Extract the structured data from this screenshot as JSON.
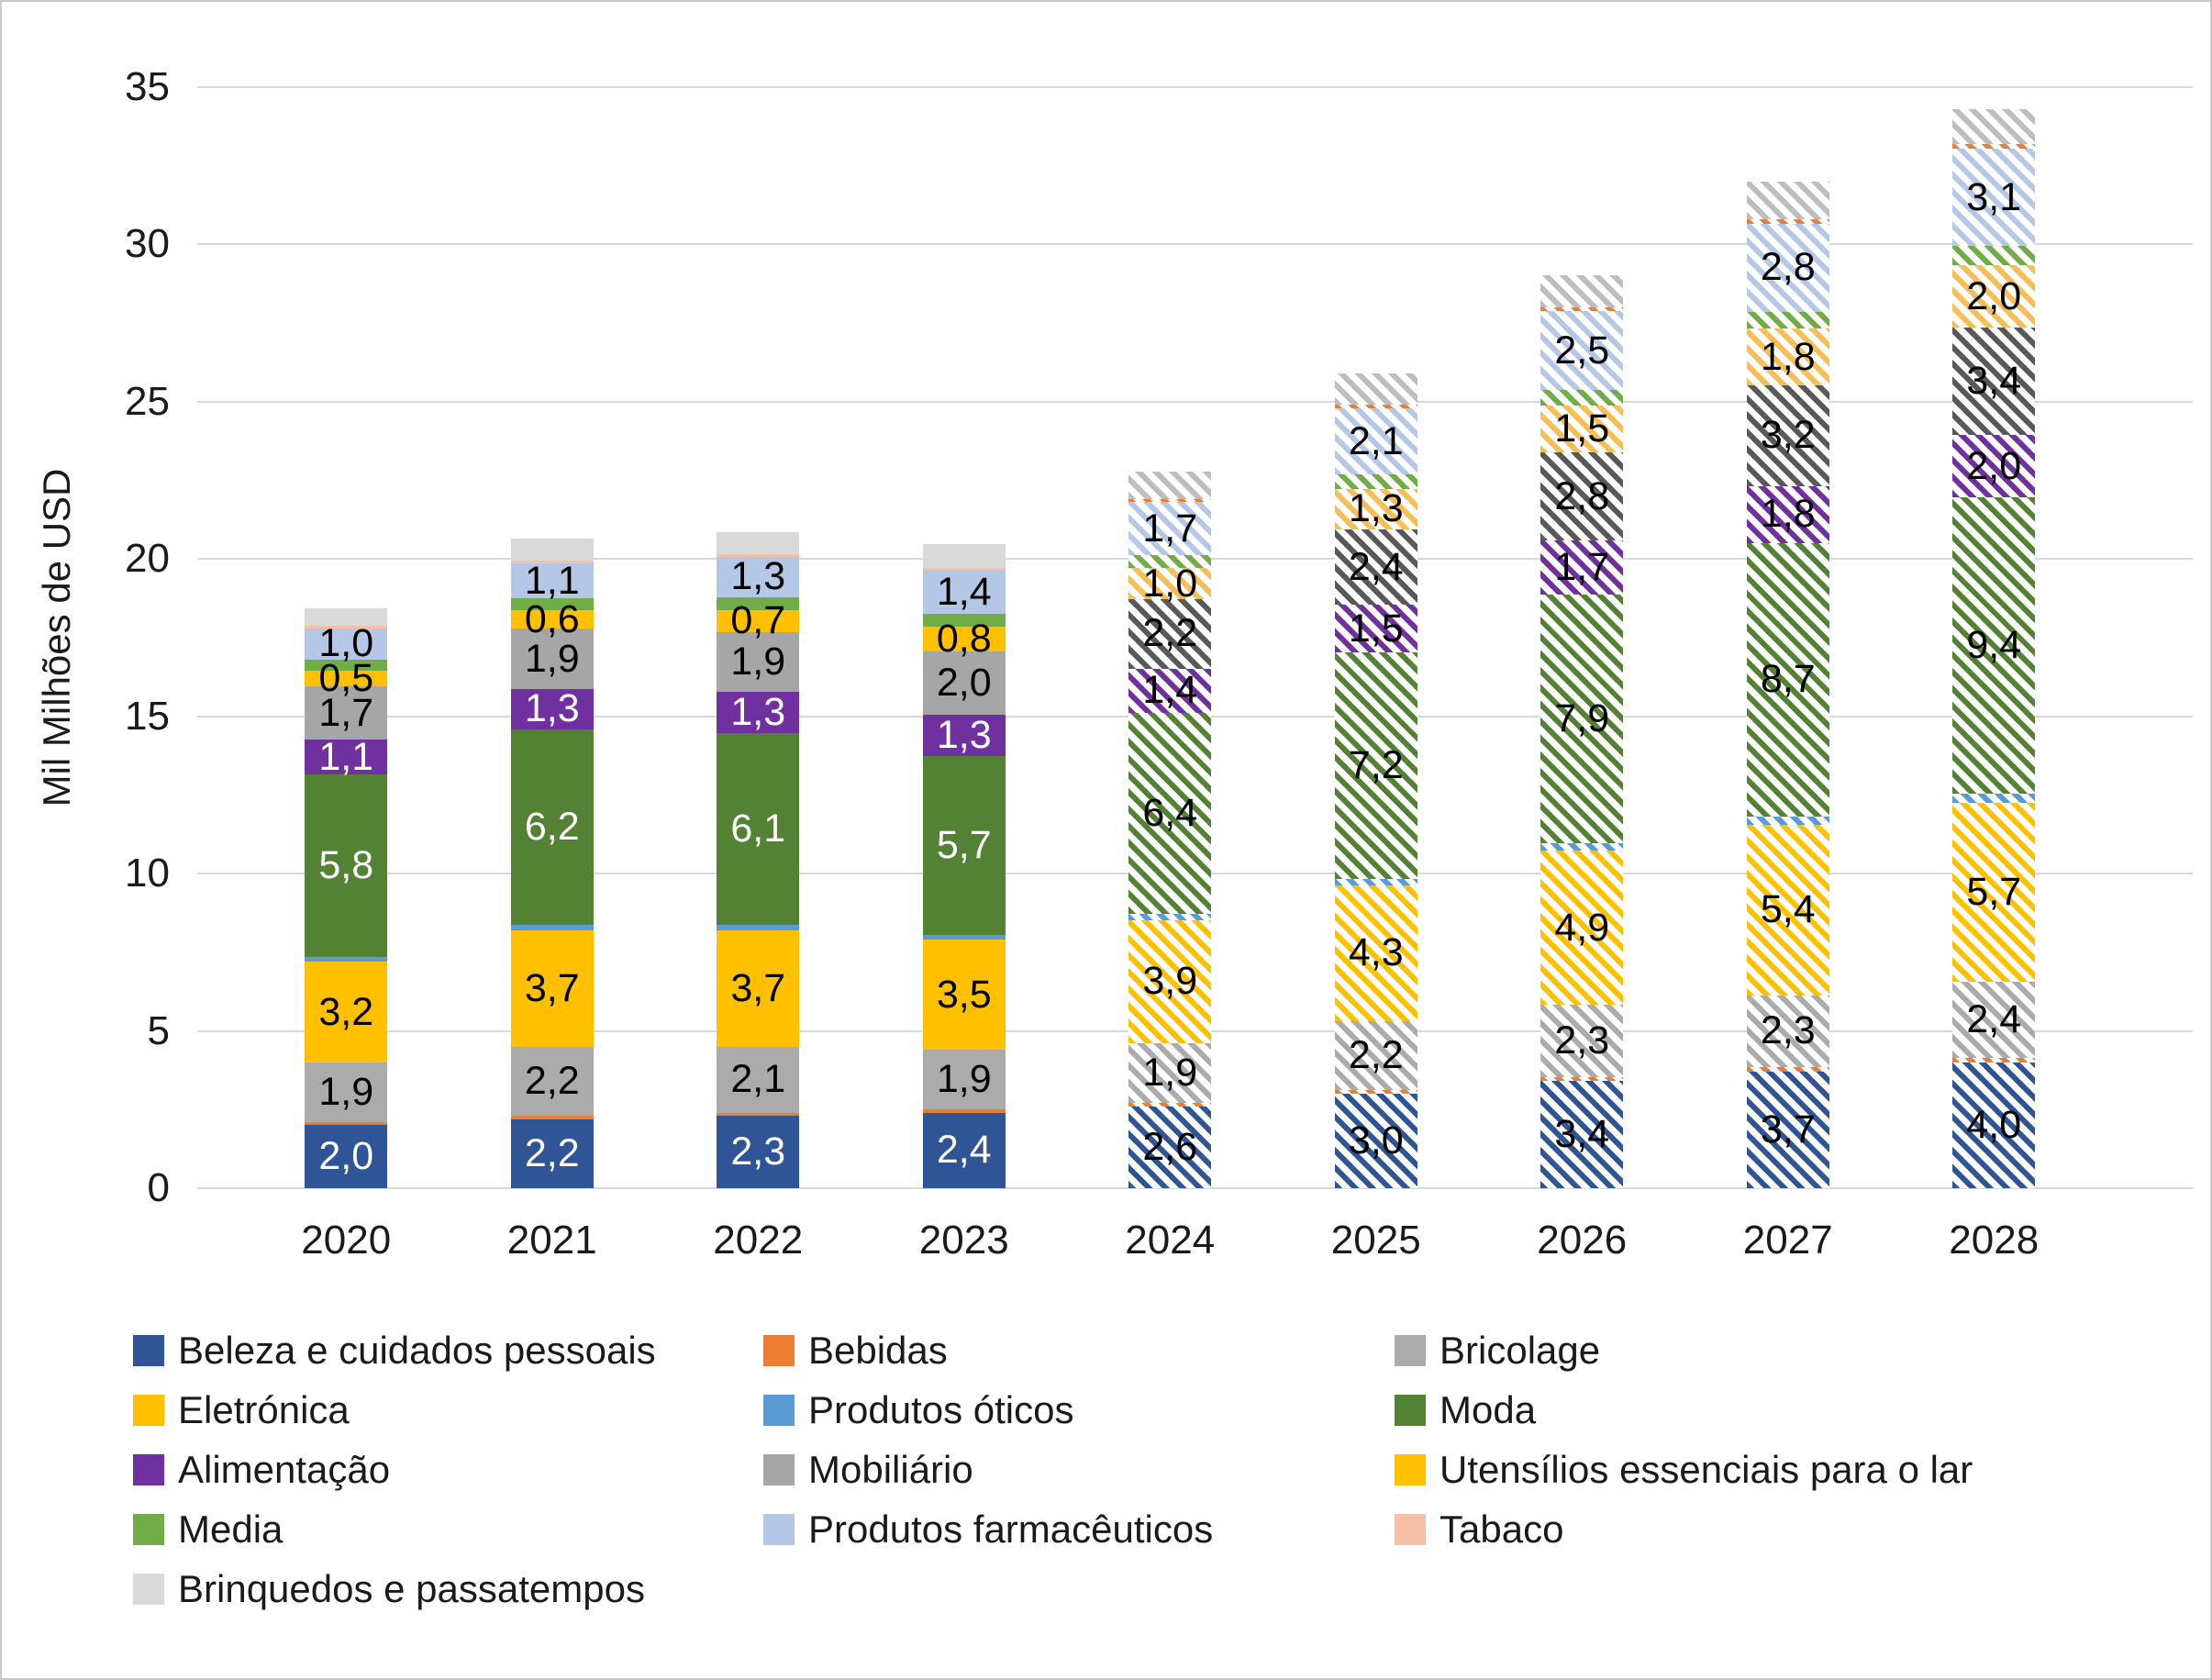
{
  "chart": {
    "y_axis_title": "Mil Milhões de USD",
    "y_ticks": [
      0,
      5,
      10,
      15,
      20,
      25,
      30,
      35
    ]
  },
  "chart_data": {
    "type": "bar",
    "stacked": true,
    "title": "",
    "xlabel": "",
    "ylabel": "Mil Milhões de USD",
    "ylim": [
      0,
      35
    ],
    "grid": true,
    "legend_position": "bottom",
    "value_format": "comma-decimal",
    "categories": [
      "2020",
      "2021",
      "2022",
      "2023",
      "2024",
      "2025",
      "2026",
      "2027",
      "2028"
    ],
    "forecast_categories": [
      "2024",
      "2025",
      "2026",
      "2027",
      "2028"
    ],
    "forecast_style": "diagonal-hatch",
    "series": [
      {
        "name": "Beleza e cuidados pessoais",
        "color": "#2F5597",
        "label_white_on_solid": true,
        "values": [
          2.0,
          2.2,
          2.3,
          2.4,
          2.6,
          3.0,
          3.4,
          3.7,
          4.0
        ],
        "labels": [
          "2,0",
          "2,2",
          "2,3",
          "2,4",
          "2,6",
          "3,0",
          "3,4",
          "3,7",
          "4,0"
        ]
      },
      {
        "name": "Bebidas",
        "color": "#ED7D31",
        "label_white_on_solid": false,
        "values": [
          0.1,
          0.1,
          0.1,
          0.1,
          0.12,
          0.12,
          0.13,
          0.14,
          0.15
        ],
        "labels": [
          "",
          "",
          "",
          "",
          "",
          "",
          "",
          "",
          ""
        ]
      },
      {
        "name": "Bricolage",
        "color": "#ABABAB",
        "label_white_on_solid": false,
        "values": [
          1.9,
          2.2,
          2.1,
          1.9,
          1.9,
          2.2,
          2.3,
          2.3,
          2.4
        ],
        "labels": [
          "1,9",
          "2,2",
          "2,1",
          "1,9",
          "1,9",
          "2,2",
          "2,3",
          "2,3",
          "2,4"
        ]
      },
      {
        "name": "Eletrónica",
        "color": "#FFC000",
        "label_white_on_solid": false,
        "values": [
          3.2,
          3.7,
          3.7,
          3.5,
          3.9,
          4.3,
          4.9,
          5.4,
          5.7
        ],
        "labels": [
          "3,2",
          "3,7",
          "3,7",
          "3,5",
          "3,9",
          "4,3",
          "4,9",
          "5,4",
          "5,7"
        ]
      },
      {
        "name": "Produtos óticos",
        "color": "#5B9BD5",
        "label_white_on_solid": false,
        "values": [
          0.15,
          0.18,
          0.18,
          0.15,
          0.2,
          0.22,
          0.25,
          0.28,
          0.3
        ],
        "labels": [
          "",
          "",
          "",
          "",
          "",
          "",
          "",
          "",
          ""
        ]
      },
      {
        "name": "Moda",
        "color": "#548235",
        "label_white_on_solid": true,
        "values": [
          5.8,
          6.2,
          6.1,
          5.7,
          6.4,
          7.2,
          7.9,
          8.7,
          9.4
        ],
        "labels": [
          "5,8",
          "6,2",
          "6,1",
          "5,7",
          "6,4",
          "7,2",
          "7,9",
          "8,7",
          "9,4"
        ]
      },
      {
        "name": "Alimentação",
        "color": "#7030A0",
        "label_white_on_solid": true,
        "values": [
          1.1,
          1.3,
          1.3,
          1.3,
          1.4,
          1.5,
          1.7,
          1.8,
          2.0
        ],
        "labels": [
          "1,1",
          "1,3",
          "1,3",
          "1,3",
          "1,4",
          "1,5",
          "1,7",
          "1,8",
          "2,0"
        ]
      },
      {
        "name": "Mobiliário",
        "color": "#A6A6A6",
        "hatch_color": "#595959",
        "label_white_on_solid": false,
        "values": [
          1.7,
          1.9,
          1.9,
          2.0,
          2.2,
          2.4,
          2.8,
          3.2,
          3.4
        ],
        "labels": [
          "1,7",
          "1,9",
          "1,9",
          "2,0",
          "2,2",
          "2,4",
          "2,8",
          "3,2",
          "3,4"
        ]
      },
      {
        "name": "Utensílios essenciais para o lar",
        "color": "#FFC000",
        "hatch_color": "#F6BE54",
        "label_white_on_solid": false,
        "values": [
          0.5,
          0.6,
          0.7,
          0.8,
          1.0,
          1.3,
          1.5,
          1.8,
          2.0
        ],
        "labels": [
          "0,5",
          "0,6",
          "0,7",
          "0,8",
          "1,0",
          "1,3",
          "1,5",
          "1,8",
          "2,0"
        ]
      },
      {
        "name": "Media",
        "color": "#70AD47",
        "label_white_on_solid": false,
        "values": [
          0.35,
          0.38,
          0.4,
          0.4,
          0.4,
          0.45,
          0.5,
          0.55,
          0.6
        ],
        "labels": [
          "",
          "",
          "",
          "",
          "",
          "",
          "",
          "",
          ""
        ]
      },
      {
        "name": "Produtos farmacêuticos",
        "color": "#B4C7E7",
        "label_white_on_solid": false,
        "values": [
          1.0,
          1.1,
          1.3,
          1.4,
          1.7,
          2.1,
          2.5,
          2.8,
          3.1
        ],
        "labels": [
          "1,0",
          "1,1",
          "1,3",
          "1,4",
          "1,7",
          "2,1",
          "2,5",
          "2,8",
          "3,1"
        ]
      },
      {
        "name": "Tabaco",
        "color": "#F5C0A6",
        "hatch_color": "#ED7D31",
        "label_white_on_solid": false,
        "values": [
          0.08,
          0.08,
          0.08,
          0.08,
          0.1,
          0.12,
          0.13,
          0.14,
          0.15
        ],
        "labels": [
          "",
          "",
          "",
          "",
          "",
          "",
          "",
          "",
          ""
        ]
      },
      {
        "name": "Brinquedos e passatempos",
        "color": "#D9D9D9",
        "hatch_color": "#BDBDBD",
        "label_white_on_solid": false,
        "values": [
          0.55,
          0.7,
          0.7,
          0.75,
          0.85,
          1.0,
          1.0,
          1.2,
          1.1
        ],
        "labels": [
          "",
          "",
          "",
          "",
          "",
          "",
          "",
          "",
          ""
        ]
      }
    ]
  }
}
